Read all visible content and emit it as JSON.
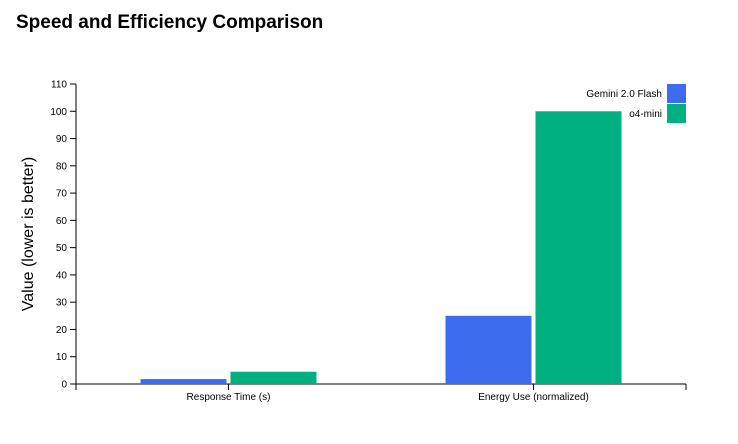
{
  "chart_data": {
    "type": "bar",
    "title": "Speed and Efficiency Comparison",
    "xlabel": "",
    "ylabel": "Value (lower is better)",
    "categories": [
      "Response Time (s)",
      "Energy Use (normalized)"
    ],
    "series": [
      {
        "name": "Gemini 2.0 Flash",
        "color": "#3d6cee",
        "values": [
          1.8,
          25
        ]
      },
      {
        "name": "o4-mini",
        "color": "#00b080",
        "values": [
          4.5,
          100
        ]
      }
    ],
    "ylim": [
      0,
      110
    ],
    "yticks": [
      0,
      10,
      20,
      30,
      40,
      50,
      60,
      70,
      80,
      90,
      100,
      110
    ],
    "grid": false,
    "legend_position": "top-right"
  }
}
